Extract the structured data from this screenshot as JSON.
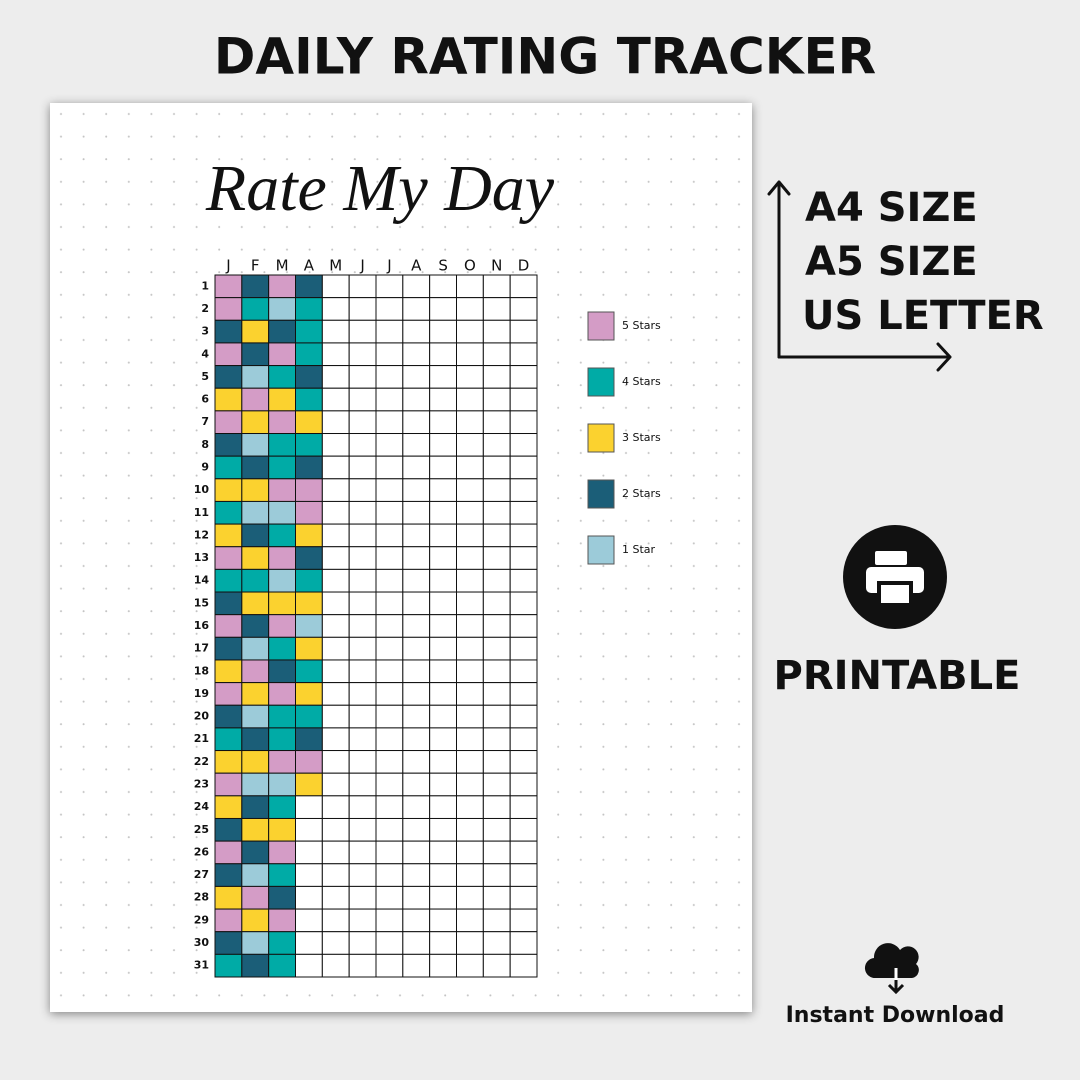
{
  "header": {
    "title": "DAILY RATING TRACKER"
  },
  "sheet": {
    "title": "Rate My Day",
    "months": [
      "J",
      "F",
      "M",
      "A",
      "M",
      "J",
      "J",
      "A",
      "S",
      "O",
      "N",
      "D"
    ],
    "days": [
      1,
      2,
      3,
      4,
      5,
      6,
      7,
      8,
      9,
      10,
      11,
      12,
      13,
      14,
      15,
      16,
      17,
      18,
      19,
      20,
      21,
      22,
      23,
      24,
      25,
      26,
      27,
      28,
      29,
      30,
      31
    ],
    "ratings": [
      [
        5,
        2,
        5,
        2
      ],
      [
        5,
        4,
        1,
        4
      ],
      [
        2,
        3,
        2,
        4
      ],
      [
        5,
        2,
        5,
        4
      ],
      [
        2,
        1,
        4,
        2
      ],
      [
        3,
        5,
        3,
        4
      ],
      [
        5,
        3,
        5,
        3
      ],
      [
        2,
        1,
        4,
        4
      ],
      [
        4,
        2,
        4,
        2
      ],
      [
        3,
        3,
        5,
        5
      ],
      [
        4,
        1,
        1,
        5
      ],
      [
        3,
        2,
        4,
        3
      ],
      [
        5,
        3,
        5,
        2
      ],
      [
        4,
        4,
        1,
        4
      ],
      [
        2,
        3,
        3,
        3
      ],
      [
        5,
        2,
        5,
        1
      ],
      [
        2,
        1,
        4,
        3
      ],
      [
        3,
        5,
        2,
        4
      ],
      [
        5,
        3,
        5,
        3
      ],
      [
        2,
        1,
        4,
        4
      ],
      [
        4,
        2,
        4,
        2
      ],
      [
        3,
        3,
        5,
        5
      ],
      [
        5,
        1,
        1,
        3
      ],
      [
        3,
        2,
        4
      ],
      [
        2,
        3,
        3
      ],
      [
        5,
        2,
        5
      ],
      [
        2,
        1,
        4
      ],
      [
        3,
        5,
        2
      ],
      [
        5,
        3,
        5
      ],
      [
        2,
        1,
        4
      ],
      [
        4,
        2,
        4
      ]
    ],
    "legend": [
      {
        "label": "5 Stars",
        "color": "#d49cc6"
      },
      {
        "label": "4 Stars",
        "color": "#00aba6"
      },
      {
        "label": "3 Stars",
        "color": "#fbd22f"
      },
      {
        "label": "2 Stars",
        "color": "#1b5e78"
      },
      {
        "label": "1 Star",
        "color": "#9ccbd9"
      }
    ]
  },
  "sizes": [
    "A4 SIZE",
    "A5 SIZE",
    "US LETTER"
  ],
  "printable": "PRINTABLE",
  "download": "Instant Download"
}
